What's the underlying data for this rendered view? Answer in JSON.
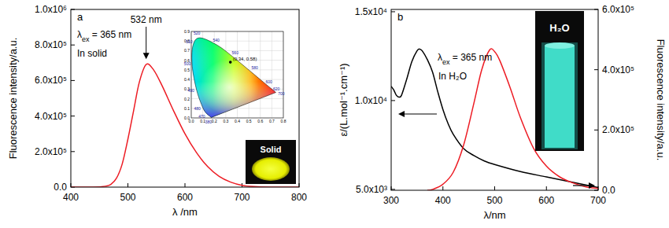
{
  "chart_data": [
    {
      "type": "line",
      "title": "a",
      "x_label": "λ /nm",
      "y_label": "Fluorescence intensity/a.u.",
      "xlim": [
        400,
        800
      ],
      "xticks": [
        400,
        500,
        600,
        700,
        800
      ],
      "ylim": [
        0,
        1000000
      ],
      "yticks": [
        {
          "value": 0,
          "label": "0.0"
        },
        {
          "value": 200000,
          "label": "2.0x10⁵"
        },
        {
          "value": 400000,
          "label": "4.0x10⁵"
        },
        {
          "value": 600000,
          "label": "6.0x10⁵"
        },
        {
          "value": 800000,
          "label": "8.0x10⁵"
        },
        {
          "value": 1000000,
          "label": "1.0x10⁶"
        }
      ],
      "x": [
        400,
        440,
        460,
        470,
        480,
        490,
        500,
        510,
        520,
        532,
        545,
        560,
        580,
        600,
        620,
        640,
        660,
        680,
        700,
        720,
        750,
        800
      ],
      "series": [
        {
          "color": "#ed1c24",
          "values": [
            0,
            0,
            5000,
            15000,
            50000,
            130000,
            270000,
            430000,
            590000,
            690000,
            660000,
            570000,
            430000,
            300000,
            195000,
            115000,
            60000,
            28000,
            10000,
            3000,
            0,
            0
          ]
        }
      ],
      "annotations": [
        {
          "text": "532 nm",
          "x": 532,
          "y": 720000
        },
        {
          "text": "λex = 365 nm"
        },
        {
          "text": "In solid"
        }
      ],
      "inset": {
        "type": "scatter",
        "xlim": [
          0,
          0.8
        ],
        "ylim": [
          0,
          0.9
        ],
        "xticks": [
          {
            "value": 0,
            "label": "0.0"
          },
          0.1,
          0.2,
          0.3,
          0.4,
          0.5,
          0.6,
          0.7,
          0.8
        ],
        "yticks": [
          {
            "value": 0,
            "label": "0.0"
          },
          0.1,
          0.2,
          0.3,
          0.4,
          0.5,
          0.6,
          0.7,
          0.8,
          0.9
        ],
        "grid": true,
        "locus": {
          "wavelengths": [
            380,
            470,
            480,
            490,
            500,
            510,
            520,
            540,
            560,
            580,
            600,
            620,
            700
          ],
          "x": [
            0.1741,
            0.1241,
            0.0913,
            0.0454,
            0.0082,
            0.0139,
            0.0743,
            0.2296,
            0.3731,
            0.5125,
            0.627,
            0.6915,
            0.7347
          ],
          "y": [
            0.005,
            0.0578,
            0.1327,
            0.295,
            0.5384,
            0.7502,
            0.8338,
            0.7543,
            0.6245,
            0.4866,
            0.3725,
            0.3083,
            0.2653
          ]
        },
        "point": {
          "x": 0.34,
          "y": 0.58,
          "label": "(0.34, 0.58)"
        }
      },
      "photo_label": "Solid"
    },
    {
      "type": "line",
      "title": "b",
      "x_label": "λ/nm",
      "y_label": "ε/(L.mol⁻¹.cm⁻¹)",
      "y2_label": "Fluorescence intensity/a.u.",
      "xlim": [
        300,
        700
      ],
      "xticks": [
        300,
        400,
        500,
        600,
        700
      ],
      "ylim": [
        4950,
        15130
      ],
      "yticks": [
        {
          "value": 5000,
          "label": "5.0x10³"
        },
        {
          "value": 10000,
          "label": "1.0x10⁴"
        },
        {
          "value": 15000,
          "label": "1.5x10⁴"
        }
      ],
      "y2lim": [
        0,
        600000
      ],
      "y2ticks": [
        {
          "value": 0,
          "label": "0.0"
        },
        {
          "value": 200000,
          "label": "2.0x10⁵"
        },
        {
          "value": 400000,
          "label": "4.0x10⁵"
        },
        {
          "value": 600000,
          "label": "6.0x10⁵"
        }
      ],
      "series": [
        {
          "color": "#000000",
          "x": [
            300,
            305,
            310,
            315,
            320,
            330,
            340,
            350,
            355,
            360,
            370,
            380,
            390,
            400,
            410,
            420,
            440,
            460,
            480,
            500,
            550,
            600,
            650,
            700
          ],
          "values": [
            10800,
            10600,
            10300,
            10200,
            10300,
            11200,
            12200,
            12800,
            12900,
            12800,
            12300,
            11600,
            10500,
            9500,
            8700,
            8100,
            7300,
            6900,
            6600,
            6400,
            6000,
            5700,
            5400,
            5100
          ]
        },
        {
          "color": "#ed1c24",
          "axis": "y2",
          "x": [
            370,
            380,
            400,
            420,
            440,
            460,
            475,
            490,
            500,
            510,
            530,
            550,
            575,
            600,
            625,
            650,
            675,
            700
          ],
          "values": [
            0,
            3000,
            20000,
            60000,
            150000,
            290000,
            400000,
            465000,
            460000,
            430000,
            340000,
            240000,
            140000,
            80000,
            45000,
            25000,
            12000,
            6000
          ]
        }
      ],
      "annotations": [
        {
          "text": "λex = 365 nm"
        },
        {
          "text": "In H₂O"
        }
      ],
      "photo_label": "H₂O"
    }
  ]
}
